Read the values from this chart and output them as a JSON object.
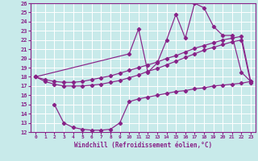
{
  "background_color": "#c8eaea",
  "grid_color": "#ffffff",
  "line_color": "#882288",
  "xlabel": "Windchill (Refroidissement éolien,°C)",
  "xlim": [
    -0.5,
    23.5
  ],
  "ylim": [
    12,
    26
  ],
  "xticks": [
    0,
    1,
    2,
    3,
    4,
    5,
    6,
    7,
    8,
    9,
    10,
    11,
    12,
    13,
    14,
    15,
    16,
    17,
    18,
    19,
    20,
    21,
    22,
    23
  ],
  "yticks": [
    12,
    13,
    14,
    15,
    16,
    17,
    18,
    19,
    20,
    21,
    22,
    23,
    24,
    25,
    26
  ],
  "line1_x": [
    0,
    1,
    2,
    3,
    4,
    5,
    6,
    7,
    8,
    9,
    10,
    11,
    12,
    13,
    14,
    15,
    16,
    17,
    18,
    19,
    20,
    21,
    22,
    23
  ],
  "line1_y": [
    18.0,
    17.7,
    17.5,
    17.4,
    17.4,
    17.5,
    17.7,
    17.9,
    18.1,
    18.4,
    18.7,
    19.0,
    19.3,
    19.6,
    20.0,
    20.3,
    20.7,
    21.1,
    21.4,
    21.7,
    22.0,
    22.2,
    22.4,
    17.5
  ],
  "line2_x": [
    0,
    1,
    2,
    3,
    4,
    5,
    6,
    7,
    8,
    9,
    10,
    11,
    12,
    13,
    14,
    15,
    16,
    17,
    18,
    19,
    20,
    21,
    22,
    23
  ],
  "line2_y": [
    18.0,
    17.5,
    17.2,
    17.0,
    17.0,
    17.0,
    17.1,
    17.2,
    17.4,
    17.6,
    17.9,
    18.2,
    18.6,
    18.9,
    19.3,
    19.7,
    20.1,
    20.5,
    20.9,
    21.2,
    21.5,
    21.8,
    22.0,
    17.3
  ],
  "line3_x": [
    0,
    10,
    11,
    12,
    13,
    14,
    15,
    16,
    17,
    18,
    19,
    20,
    21,
    22,
    23
  ],
  "line3_y": [
    18.0,
    20.5,
    23.2,
    18.5,
    19.5,
    22.0,
    24.8,
    22.2,
    26.0,
    25.5,
    23.5,
    22.5,
    22.5,
    18.5,
    17.5
  ],
  "line4_x": [
    2,
    3,
    4,
    5,
    6,
    7,
    8,
    9,
    10,
    11,
    12,
    13,
    14,
    15,
    16,
    17,
    18,
    19,
    20,
    21,
    22,
    23
  ],
  "line4_y": [
    15.0,
    13.0,
    12.5,
    12.3,
    12.2,
    12.2,
    12.3,
    13.0,
    15.3,
    15.6,
    15.8,
    16.0,
    16.2,
    16.4,
    16.5,
    16.7,
    16.8,
    17.0,
    17.1,
    17.2,
    17.3,
    17.5
  ]
}
